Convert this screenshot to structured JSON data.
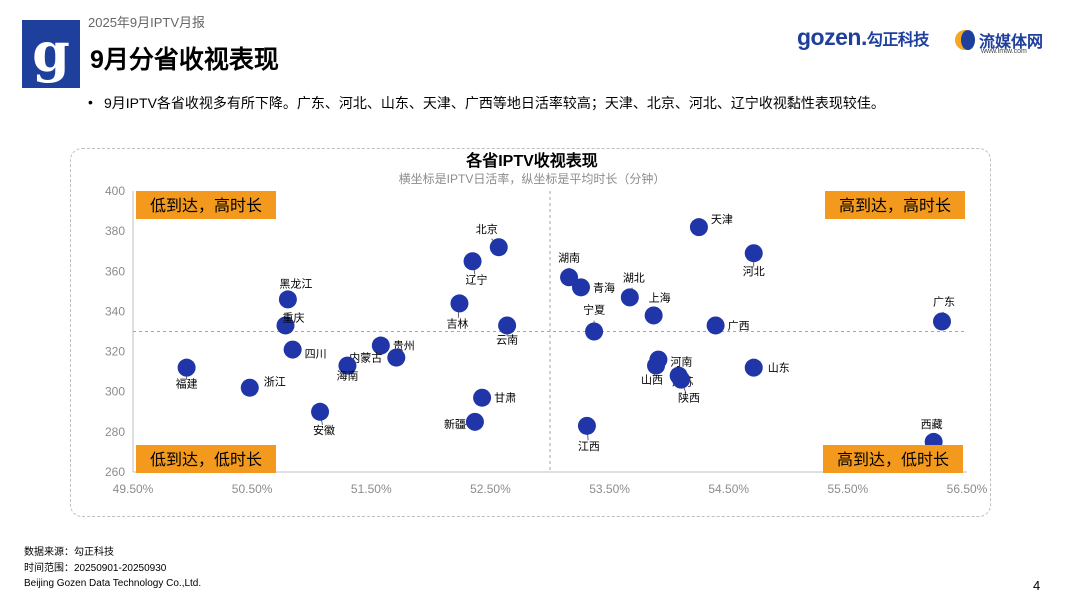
{
  "header": {
    "report_label": "2025年9月IPTV月报",
    "page_title": "9月分省收视表现",
    "brand_gozen_latin": "gozen.",
    "brand_gozen_cn": "勾正科技",
    "brand_lmtw_name": "流媒体网",
    "brand_lmtw_url": "www.lmtw.com",
    "logo_glyph": "g"
  },
  "bullet": "9月IPTV各省收视多有所下降。广东、河北、山东、天津、广西等地日活率较高；天津、北京、河北、辽宁收视黏性表现较佳。",
  "chart_data": {
    "type": "scatter",
    "title": "各省IPTV收视表现",
    "subtitle": "横坐标是IPTV日活率，纵坐标是平均时长（分钟）",
    "xlabel": "",
    "ylabel": "",
    "xlim": [
      49.5,
      56.5
    ],
    "ylim": [
      260,
      400
    ],
    "x_ticks": [
      "49.50%",
      "50.50%",
      "51.50%",
      "52.50%",
      "53.50%",
      "54.50%",
      "55.50%",
      "56.50%"
    ],
    "y_ticks": [
      "260",
      "280",
      "300",
      "320",
      "340",
      "360",
      "380",
      "400"
    ],
    "x_divider": 53.0,
    "y_divider": 330,
    "grid": false,
    "point_color": "#1f35a8",
    "quadrant_color": "#f39a1e",
    "quadrants": {
      "top_left": "低到达，高时长",
      "top_right": "高到达，高时长",
      "bottom_left": "低到达，低时长",
      "bottom_right": "高到达，低时长"
    },
    "points": [
      {
        "name": "天津",
        "x": 54.25,
        "y": 382
      },
      {
        "name": "北京",
        "x": 52.57,
        "y": 372
      },
      {
        "name": "河北",
        "x": 54.71,
        "y": 369
      },
      {
        "name": "辽宁",
        "x": 52.35,
        "y": 365
      },
      {
        "name": "湖南",
        "x": 53.16,
        "y": 357
      },
      {
        "name": "青海",
        "x": 53.26,
        "y": 352
      },
      {
        "name": "湖北",
        "x": 53.67,
        "y": 347
      },
      {
        "name": "黑龙江",
        "x": 50.8,
        "y": 346
      },
      {
        "name": "吉林",
        "x": 52.24,
        "y": 344
      },
      {
        "name": "上海",
        "x": 53.87,
        "y": 338
      },
      {
        "name": "广东",
        "x": 56.29,
        "y": 335
      },
      {
        "name": "重庆",
        "x": 50.78,
        "y": 333
      },
      {
        "name": "云南",
        "x": 52.64,
        "y": 333
      },
      {
        "name": "广西",
        "x": 54.39,
        "y": 333
      },
      {
        "name": "宁夏",
        "x": 53.37,
        "y": 330
      },
      {
        "name": "贵州",
        "x": 51.58,
        "y": 323
      },
      {
        "name": "四川",
        "x": 50.84,
        "y": 321
      },
      {
        "name": "内蒙古",
        "x": 51.71,
        "y": 317
      },
      {
        "name": "河南",
        "x": 53.91,
        "y": 316
      },
      {
        "name": "山西",
        "x": 53.89,
        "y": 313
      },
      {
        "name": "海南",
        "x": 51.3,
        "y": 313
      },
      {
        "name": "福建",
        "x": 49.95,
        "y": 312
      },
      {
        "name": "山东",
        "x": 54.71,
        "y": 312
      },
      {
        "name": "江苏",
        "x": 54.08,
        "y": 308
      },
      {
        "name": "陕西",
        "x": 54.1,
        "y": 306
      },
      {
        "name": "浙江",
        "x": 50.48,
        "y": 302
      },
      {
        "name": "甘肃",
        "x": 52.43,
        "y": 297
      },
      {
        "name": "安徽",
        "x": 51.07,
        "y": 290
      },
      {
        "name": "新疆",
        "x": 52.37,
        "y": 285
      },
      {
        "name": "江西",
        "x": 53.31,
        "y": 283
      },
      {
        "name": "西藏",
        "x": 56.22,
        "y": 275
      }
    ]
  },
  "footer": {
    "source": "数据来源：勾正科技",
    "period": "时间范围：20250901-20250930",
    "company": "Beijing Gozen Data Technology Co.,Ltd.",
    "page_number": "4"
  }
}
